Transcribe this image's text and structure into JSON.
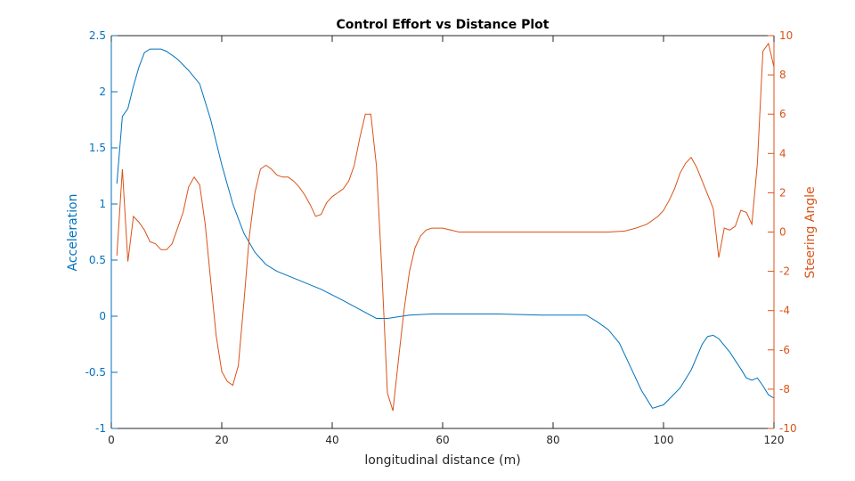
{
  "chart_data": {
    "type": "line",
    "title": "Control Effort vs Distance Plot",
    "xlabel": "longitudinal distance (m)",
    "xlim": [
      0,
      120
    ],
    "x_ticks": [
      0,
      20,
      40,
      60,
      80,
      100,
      120
    ],
    "grid": false,
    "left_axis": {
      "label": "Acceleration",
      "color": "#0072bd",
      "ylim": [
        -1,
        2.5
      ],
      "ticks": [
        -1,
        -0.5,
        0,
        0.5,
        1,
        1.5,
        2,
        2.5
      ]
    },
    "right_axis": {
      "label": "Steering Angle",
      "color": "#d95319",
      "ylim": [
        -10,
        10
      ],
      "ticks": [
        -10,
        -8,
        -6,
        -4,
        -2,
        0,
        2,
        4,
        6,
        8,
        10
      ]
    },
    "series": [
      {
        "axis": "left",
        "color": "#0072bd",
        "points": [
          [
            1,
            1.18
          ],
          [
            2,
            1.78
          ],
          [
            3,
            1.85
          ],
          [
            4,
            2.05
          ],
          [
            5,
            2.22
          ],
          [
            6,
            2.35
          ],
          [
            7,
            2.38
          ],
          [
            8,
            2.38
          ],
          [
            9,
            2.38
          ],
          [
            10,
            2.36
          ],
          [
            12,
            2.29
          ],
          [
            14,
            2.19
          ],
          [
            16,
            2.07
          ],
          [
            18,
            1.75
          ],
          [
            20,
            1.35
          ],
          [
            22,
            1.0
          ],
          [
            24,
            0.74
          ],
          [
            26,
            0.57
          ],
          [
            28,
            0.46
          ],
          [
            30,
            0.4
          ],
          [
            34,
            0.32
          ],
          [
            38,
            0.24
          ],
          [
            42,
            0.14
          ],
          [
            45,
            0.06
          ],
          [
            48,
            -0.02
          ],
          [
            50,
            -0.02
          ],
          [
            54,
            0.01
          ],
          [
            58,
            0.02
          ],
          [
            62,
            0.02
          ],
          [
            70,
            0.02
          ],
          [
            78,
            0.01
          ],
          [
            86,
            0.01
          ],
          [
            88,
            -0.05
          ],
          [
            90,
            -0.12
          ],
          [
            92,
            -0.24
          ],
          [
            94,
            -0.45
          ],
          [
            96,
            -0.66
          ],
          [
            98,
            -0.82
          ],
          [
            100,
            -0.79
          ],
          [
            103,
            -0.64
          ],
          [
            105,
            -0.48
          ],
          [
            107,
            -0.25
          ],
          [
            108,
            -0.18
          ],
          [
            109,
            -0.17
          ],
          [
            110,
            -0.2
          ],
          [
            112,
            -0.32
          ],
          [
            114,
            -0.47
          ],
          [
            115,
            -0.55
          ],
          [
            116,
            -0.57
          ],
          [
            117,
            -0.55
          ],
          [
            118,
            -0.62
          ],
          [
            119,
            -0.7
          ],
          [
            120,
            -0.73
          ]
        ]
      },
      {
        "axis": "right",
        "color": "#d95319",
        "points": [
          [
            1,
            -1.2
          ],
          [
            2,
            3.2
          ],
          [
            3,
            -1.5
          ],
          [
            4,
            0.8
          ],
          [
            5,
            0.5
          ],
          [
            6,
            0.1
          ],
          [
            7,
            -0.5
          ],
          [
            8,
            -0.6
          ],
          [
            9,
            -0.9
          ],
          [
            10,
            -0.9
          ],
          [
            11,
            -0.6
          ],
          [
            12,
            0.2
          ],
          [
            13,
            1.0
          ],
          [
            14,
            2.3
          ],
          [
            15,
            2.8
          ],
          [
            16,
            2.4
          ],
          [
            17,
            0.4
          ],
          [
            18,
            -2.5
          ],
          [
            19,
            -5.3
          ],
          [
            20,
            -7.1
          ],
          [
            21,
            -7.6
          ],
          [
            22,
            -7.8
          ],
          [
            23,
            -6.8
          ],
          [
            24,
            -3.6
          ],
          [
            25,
            -0.2
          ],
          [
            26,
            2.0
          ],
          [
            27,
            3.2
          ],
          [
            28,
            3.4
          ],
          [
            29,
            3.2
          ],
          [
            30,
            2.9
          ],
          [
            31,
            2.8
          ],
          [
            32,
            2.8
          ],
          [
            33,
            2.6
          ],
          [
            34,
            2.3
          ],
          [
            35,
            1.9
          ],
          [
            36,
            1.4
          ],
          [
            37,
            0.8
          ],
          [
            38,
            0.9
          ],
          [
            39,
            1.5
          ],
          [
            40,
            1.8
          ],
          [
            41,
            2.0
          ],
          [
            42,
            2.2
          ],
          [
            43,
            2.6
          ],
          [
            44,
            3.4
          ],
          [
            45,
            4.8
          ],
          [
            46,
            6.0
          ],
          [
            47,
            6.0
          ],
          [
            48,
            3.4
          ],
          [
            49,
            -2.0
          ],
          [
            50,
            -8.2
          ],
          [
            51,
            -9.1
          ],
          [
            52,
            -6.5
          ],
          [
            53,
            -4.0
          ],
          [
            54,
            -2.0
          ],
          [
            55,
            -0.8
          ],
          [
            56,
            -0.2
          ],
          [
            57,
            0.1
          ],
          [
            58,
            0.2
          ],
          [
            60,
            0.2
          ],
          [
            63,
            0.0
          ],
          [
            70,
            0.0
          ],
          [
            80,
            0.0
          ],
          [
            90,
            0.0
          ],
          [
            93,
            0.05
          ],
          [
            95,
            0.2
          ],
          [
            97,
            0.4
          ],
          [
            99,
            0.8
          ],
          [
            100,
            1.1
          ],
          [
            101,
            1.6
          ],
          [
            102,
            2.2
          ],
          [
            103,
            3.0
          ],
          [
            104,
            3.5
          ],
          [
            105,
            3.8
          ],
          [
            106,
            3.3
          ],
          [
            107,
            2.6
          ],
          [
            108,
            1.9
          ],
          [
            109,
            1.2
          ],
          [
            110,
            -1.3
          ],
          [
            111,
            0.2
          ],
          [
            112,
            0.1
          ],
          [
            113,
            0.3
          ],
          [
            114,
            1.1
          ],
          [
            115,
            1.0
          ],
          [
            116,
            0.4
          ],
          [
            117,
            3.5
          ],
          [
            118,
            9.2
          ],
          [
            119,
            9.6
          ],
          [
            120,
            8.4
          ]
        ]
      }
    ]
  }
}
